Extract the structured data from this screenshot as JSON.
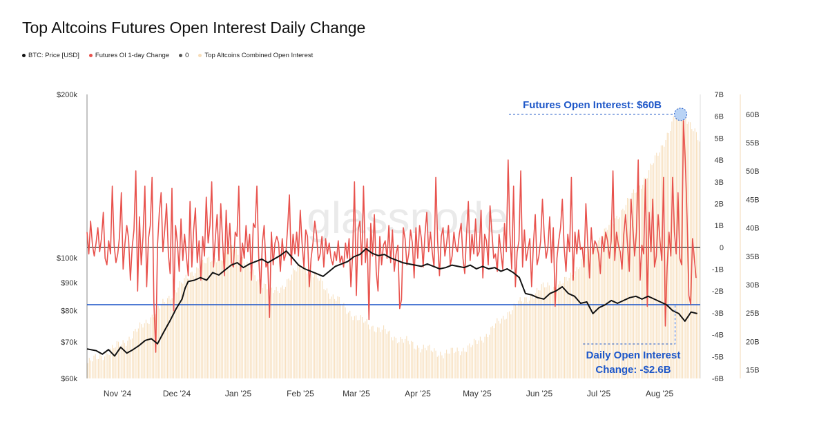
{
  "title": "Top Altcoins Futures Open Interest Daily Change",
  "legend": [
    {
      "label": "BTC: Price [USD]",
      "color": "#111111"
    },
    {
      "label": "Futures OI 1-day Change",
      "color": "#e8524d"
    },
    {
      "label": "0",
      "color": "#555555"
    },
    {
      "label": "Top Altcoins Combined Open Interest",
      "color": "#f7ddb8"
    }
  ],
  "watermark": "glassnode",
  "chart_data": {
    "type": "line",
    "x_ticks": [
      "Nov '24",
      "Dec '24",
      "Jan '25",
      "Feb '25",
      "Mar '25",
      "Apr '25",
      "May '25",
      "Jun '25",
      "Jul '25",
      "Aug '25"
    ],
    "x_range": [
      0,
      100
    ],
    "axes": {
      "price": {
        "label": "BTC: Price [USD]",
        "scale": "log",
        "range": [
          60000,
          200000
        ],
        "ticks": [
          {
            "v": 200000,
            "t": "$200k"
          },
          {
            "v": 100000,
            "t": "$100k"
          },
          {
            "v": 90000,
            "t": "$90k"
          },
          {
            "v": 80000,
            "t": "$80k"
          },
          {
            "v": 70000,
            "t": "$70k"
          },
          {
            "v": 60000,
            "t": "$60k"
          }
        ]
      },
      "oi_change": {
        "label": "Futures OI 1-day Change",
        "range": [
          -6,
          7
        ],
        "ticks": [
          "7B",
          "6B",
          "5B",
          "4B",
          "3B",
          "2B",
          "1B",
          "0",
          "-1B",
          "-2B",
          "-3B",
          "-4B",
          "-5B",
          "-6B"
        ]
      },
      "open_interest": {
        "label": "Top Altcoins Combined Open Interest",
        "range": [
          13.5,
          63.5
        ],
        "ticks": [
          {
            "v": 60,
            "t": "60B"
          },
          {
            "v": 55,
            "t": "55B"
          },
          {
            "v": 50,
            "t": "50B"
          },
          {
            "v": 45,
            "t": "45B"
          },
          {
            "v": 40,
            "t": "40B"
          },
          {
            "v": 35,
            "t": "35B"
          },
          {
            "v": 30,
            "t": "30B"
          },
          {
            "v": 25,
            "t": "25B"
          },
          {
            "v": 20,
            "t": "20B"
          },
          {
            "v": 15,
            "t": "15B"
          }
        ]
      }
    },
    "series": [
      {
        "name": "BTC: Price [USD]",
        "axis": "price",
        "color": "#111111",
        "points": [
          [
            0,
            68000
          ],
          [
            1.5,
            67500
          ],
          [
            2.5,
            66500
          ],
          [
            3.5,
            67800
          ],
          [
            4.5,
            66000
          ],
          [
            5.5,
            68500
          ],
          [
            6.5,
            66800
          ],
          [
            7.5,
            67800
          ],
          [
            8.5,
            69000
          ],
          [
            9.5,
            70500
          ],
          [
            10.5,
            71000
          ],
          [
            11.5,
            69500
          ],
          [
            12.5,
            73000
          ],
          [
            13.5,
            76500
          ],
          [
            14.5,
            80500
          ],
          [
            15.5,
            84000
          ],
          [
            16,
            88000
          ],
          [
            16.5,
            90500
          ],
          [
            17.5,
            91000
          ],
          [
            18.5,
            92000
          ],
          [
            19.5,
            91000
          ],
          [
            20.5,
            94000
          ],
          [
            21.5,
            93000
          ],
          [
            22.5,
            95000
          ],
          [
            23.5,
            97000
          ],
          [
            24.5,
            98000
          ],
          [
            25.5,
            96000
          ],
          [
            26.5,
            97500
          ],
          [
            27.5,
            98500
          ],
          [
            28.5,
            99500
          ],
          [
            29.5,
            98000
          ],
          [
            30.5,
            99500
          ],
          [
            31.5,
            101000
          ],
          [
            32.5,
            103000
          ],
          [
            33.5,
            100000
          ],
          [
            34.5,
            97000
          ],
          [
            35.5,
            95500
          ],
          [
            36.5,
            94500
          ],
          [
            37.5,
            93500
          ],
          [
            38.5,
            92500
          ],
          [
            39.5,
            94500
          ],
          [
            40.5,
            96500
          ],
          [
            41.5,
            97500
          ],
          [
            42.5,
            98500
          ],
          [
            43.5,
            100500
          ],
          [
            44.5,
            101500
          ],
          [
            45.5,
            104000
          ],
          [
            46.5,
            102000
          ],
          [
            47.5,
            101000
          ],
          [
            48.5,
            101500
          ],
          [
            49.5,
            100000
          ],
          [
            50.5,
            99000
          ],
          [
            51.5,
            98000
          ],
          [
            52.5,
            97500
          ],
          [
            53.5,
            97000
          ],
          [
            54.5,
            96500
          ],
          [
            55.5,
            97500
          ],
          [
            56.5,
            96500
          ],
          [
            57.5,
            95500
          ],
          [
            58.5,
            96000
          ],
          [
            59.5,
            97000
          ],
          [
            60.5,
            96500
          ],
          [
            61.5,
            96000
          ],
          [
            62.5,
            97000
          ],
          [
            63.5,
            95500
          ],
          [
            64.5,
            96500
          ],
          [
            65.5,
            95500
          ],
          [
            66.5,
            96000
          ],
          [
            67.5,
            94500
          ],
          [
            68.5,
            95500
          ],
          [
            69.5,
            94000
          ],
          [
            70.5,
            92000
          ],
          [
            71.5,
            86000
          ],
          [
            72.5,
            85500
          ],
          [
            73.5,
            84500
          ],
          [
            74.5,
            84000
          ],
          [
            75.5,
            86000
          ],
          [
            76.5,
            87000
          ],
          [
            77.5,
            88500
          ],
          [
            78.5,
            86000
          ],
          [
            79.5,
            85000
          ],
          [
            80.5,
            82500
          ],
          [
            81.5,
            83000
          ],
          [
            82.5,
            79000
          ],
          [
            83.5,
            81000
          ],
          [
            84.5,
            82000
          ],
          [
            85.5,
            83500
          ],
          [
            86.5,
            82500
          ],
          [
            87.5,
            83500
          ],
          [
            88.5,
            84500
          ],
          [
            89.5,
            85000
          ],
          [
            90.5,
            84000
          ],
          [
            91.5,
            85000
          ],
          [
            92.5,
            84000
          ],
          [
            93.5,
            83000
          ],
          [
            94.5,
            82000
          ],
          [
            95.5,
            80000
          ],
          [
            96.5,
            79000
          ],
          [
            97.5,
            76500
          ],
          [
            98.5,
            79500
          ],
          [
            99.5,
            79000
          ]
        ]
      },
      {
        "name": "Futures OI 1-day Change",
        "axis": "oi_change",
        "color": "#e8524d",
        "points": [
          [
            0,
            0.7
          ],
          [
            1,
            -0.2
          ],
          [
            2,
            1.3
          ],
          [
            3,
            -0.1
          ],
          [
            4,
            -0.5
          ],
          [
            5,
            0.3
          ],
          [
            6,
            0.8
          ],
          [
            7,
            -0.4
          ],
          [
            8,
            0.5
          ],
          [
            9,
            0.6
          ],
          [
            10,
            -0.3
          ],
          [
            11,
            -0.9
          ],
          [
            12,
            0.2
          ],
          [
            13,
            -0.2
          ],
          [
            14,
            1.2
          ],
          [
            15,
            0.4
          ],
          [
            16,
            0.9
          ],
          [
            17,
            -0.6
          ],
          [
            18,
            1.7
          ],
          [
            19,
            0.2
          ],
          [
            20,
            -0.9
          ],
          [
            21,
            2.0
          ],
          [
            22,
            -0.4
          ],
          [
            23,
            1.4
          ],
          [
            24,
            0.1
          ],
          [
            25,
            -0.6
          ],
          [
            26,
            0.3
          ],
          [
            27,
            3.8
          ],
          [
            28,
            -0.7
          ],
          [
            29,
            -0.2
          ],
          [
            30,
            0.1
          ],
          [
            31,
            1.4
          ],
          [
            32,
            -0.3
          ],
          [
            33,
            0.4
          ],
          [
            34,
            -1.2
          ],
          [
            35,
            0.2
          ],
          [
            36,
            0.9
          ],
          [
            37,
            -0.7
          ],
          [
            38,
            2.1
          ]
        ]
      }
    ],
    "annotations": [
      {
        "text": "Futures Open Interest: $60B",
        "x": 99.5,
        "axis": "open_interest",
        "value": 60
      },
      {
        "text": "Daily Open Interest",
        "x": 99.5,
        "axis": "oi_change",
        "value": -2.6
      },
      {
        "text": "Change: -$2.6B",
        "x": 99.5,
        "axis": "oi_change",
        "value": -2.6
      }
    ],
    "reference_lines": [
      {
        "label": "0",
        "axis": "oi_change",
        "value": 0,
        "color": "#333333"
      },
      {
        "axis": "price",
        "value": 82000,
        "color": "#1e57c8"
      }
    ]
  },
  "oi_change_values": [
    0.7,
    -0.3,
    1.2,
    0.1,
    -0.4,
    0.2,
    0.9,
    -0.2,
    0.4,
    1.6,
    -0.5,
    -0.8,
    0.3,
    -0.3,
    2.8,
    0.1,
    -0.7,
    -0.3,
    0.5,
    2.5,
    -1.0,
    0.2,
    1.0,
    0.4,
    -1.5,
    0.0,
    0.8,
    3.5,
    -2.0,
    1.4,
    -0.8,
    0.5,
    2.8,
    -1.8,
    0.4,
    1.0,
    3.2,
    -2.5,
    -4.8,
    0.1,
    1.6,
    2.5,
    -0.2,
    0.8,
    2.0,
    -0.3,
    -1.2,
    2.7,
    -2.9,
    1.0,
    0.2,
    -1.1,
    1.3,
    -0.6,
    0.6,
    -0.4,
    -1.3,
    2.1,
    -0.9,
    0.8,
    1.8,
    -0.7,
    0.3,
    -1.5,
    0.5,
    -0.4,
    2.3,
    0.2,
    1.0,
    3.0,
    -0.9,
    0.4,
    1.5,
    -0.6,
    2.0,
    0.3,
    -1.3,
    1.7,
    -0.3,
    1.1,
    -0.7,
    -0.9,
    0.7,
    0.5,
    2.8,
    -1.1,
    0.2,
    -0.5,
    1.0,
    -0.2,
    0.6,
    -1.5,
    1.1,
    0.9,
    2.8,
    -0.4,
    -2.1,
    0.2,
    1.0,
    -0.9,
    -0.7,
    -3.2,
    0.7,
    -0.8,
    0.2,
    0.5,
    0.2,
    -1.1,
    0.4,
    -0.6,
    -0.3,
    0.9,
    2.4,
    -0.8,
    0.6,
    -0.3,
    0.7,
    -0.4,
    1.7,
    0.2,
    -0.9,
    0.8,
    0.5,
    -1.8,
    -0.5,
    0.2,
    1.2,
    0.6,
    -0.6,
    -0.3,
    0.5,
    -0.9,
    0.4,
    -0.3,
    0.2,
    -0.5,
    -0.8,
    -0.2,
    -0.6,
    0.3,
    -0.7,
    -0.4,
    -0.9,
    0.2,
    -0.5,
    0.4,
    -1.8,
    -0.3,
    3.0,
    -2.2,
    0.8,
    1.2,
    -0.8,
    2.8,
    -0.7,
    0.4,
    -3.3,
    1.1,
    -0.4,
    1.5,
    -1.1,
    -2.0,
    0.5,
    -0.8,
    0.1,
    0.3,
    -0.5,
    1.0,
    -0.7,
    0.8,
    -1.1,
    -0.3,
    0.1,
    -2.8,
    -2.4,
    0.9,
    0.4,
    -0.8,
    -0.3,
    0.8,
    0.2,
    -1.4,
    0.9,
    -0.5,
    1.0,
    0.4,
    -0.9,
    0.6,
    1.6,
    -0.2,
    0.7,
    -0.2,
    -0.9,
    3.2,
    0.3,
    -1.3,
    0.5,
    0.9,
    -0.4,
    0.2,
    1.0,
    -0.8,
    -0.4,
    0.7,
    0.0,
    -0.2,
    0.6,
    1.1,
    -0.5,
    -1.2,
    0.6,
    2.1,
    -0.6,
    0.6,
    -0.3,
    1.3,
    -0.4,
    -0.2,
    1.7,
    -1.4,
    0.6,
    0.3,
    -0.8,
    1.9,
    0.7,
    -0.5,
    -0.3,
    -1.1,
    0.6,
    -0.2,
    -1.0,
    1.1,
    -0.2,
    4.0,
    0.6,
    -1.0,
    2.8,
    -1.8,
    -0.2,
    0.3,
    3.5,
    -0.9,
    0.8,
    -0.6,
    -0.1,
    0.4,
    -1.8,
    0.2,
    1.5,
    -0.8,
    -0.4,
    0.3,
    2.2,
    0.5,
    -0.5,
    0.0,
    1.4,
    -0.7,
    0.9,
    -2.7,
    -0.5,
    0.3,
    0.9,
    2.2,
    0.0,
    -1.1,
    0.6,
    -0.2,
    3.2,
    -1.5,
    0.7,
    -0.3,
    0.8,
    -0.1,
    0.0,
    -0.9,
    2.0,
    0.2,
    -1.4,
    0.9,
    -0.3,
    0.3,
    0.1,
    -0.3,
    -1.2,
    0.5,
    -0.2,
    0.7,
    0.3,
    -0.5,
    0.3,
    3.5,
    -0.6,
    0.7,
    0.1,
    -0.2,
    -1.0,
    0.6,
    1.5,
    0.2,
    -1.1,
    2.2,
    0.9,
    -0.4,
    0.7,
    4.0,
    -1.5,
    0.1,
    -0.3,
    3.1,
    -2.7,
    1.6,
    -0.2,
    2.2,
    -0.9,
    -0.4,
    1.5,
    0.3,
    -0.6,
    3.2,
    -3.6,
    -0.9,
    0.7,
    -0.4,
    3.2,
    0.7,
    -0.3,
    2.5,
    -0.5,
    -0.8,
    5.8,
    4.0,
    1.4,
    -2.2,
    -2.6,
    0.4,
    -0.5,
    -1.4
  ],
  "open_interest_values": [
    16.2,
    16.8,
    17.3,
    17.9,
    18.5,
    19.2,
    19.8,
    20.5,
    21.4,
    22.5,
    23.5,
    24.5,
    25.6,
    26.7,
    27.9,
    29.0,
    30.0,
    31.1,
    32.4,
    33.0,
    33.7,
    34.4,
    35.0,
    34.5,
    35.8,
    36.8,
    35.4,
    33.9,
    32.3,
    31.2,
    30.3,
    29.5,
    28.6,
    29.3,
    30.4,
    31.6,
    32.8,
    33.6,
    32.5,
    31.4,
    30.6,
    29.2,
    27.9,
    27.2,
    26.0,
    25.2,
    24.2,
    23.7,
    23.2,
    22.6,
    22.1,
    21.8,
    21.2,
    20.6,
    20.2,
    19.9,
    19.4,
    19.0,
    18.8,
    18.4,
    18.1,
    17.9,
    18.0,
    18.2,
    18.5,
    18.9,
    19.3,
    20.0,
    20.8,
    21.8,
    22.9,
    23.7,
    25.0,
    25.9,
    26.7,
    27.4,
    28.0,
    28.6,
    29.5,
    30.0,
    29.4,
    29.9,
    30.6,
    31.8,
    33.0,
    34.4,
    35.9,
    37.1,
    38.3,
    39.6,
    40.8,
    42.2,
    43.6,
    45.0,
    46.4,
    47.8,
    49.3,
    51.3,
    53.3,
    55.4,
    57.6,
    60.0,
    60.8,
    59.1,
    57.3,
    55.0
  ]
}
